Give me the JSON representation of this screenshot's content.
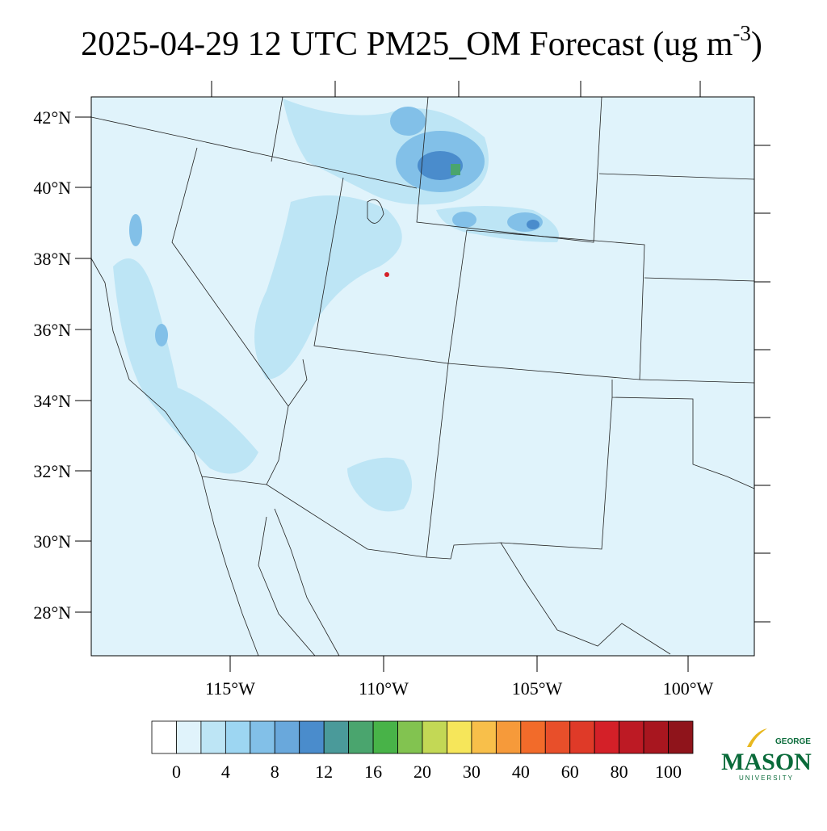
{
  "title": {
    "main": "2025-04-29 12 UTC PM25_OM Forecast (ug m",
    "superscript": "-3",
    "end": ")"
  },
  "map": {
    "lat_labels": [
      "42°N",
      "40°N",
      "38°N",
      "36°N",
      "34°N",
      "32°N",
      "30°N",
      "28°N"
    ],
    "lon_labels": [
      "115°W",
      "110°W",
      "105°W",
      "100°W"
    ]
  },
  "colorbar": {
    "colors": [
      "#ffffff",
      "#e0f3fb",
      "#bde5f5",
      "#9dd6f2",
      "#82c0e8",
      "#69a8dc",
      "#4a8ccc",
      "#4a9a9a",
      "#4aa56e",
      "#48b348",
      "#82c350",
      "#c3d855",
      "#f6e65a",
      "#f8bf4a",
      "#f69a3a",
      "#f26b2a",
      "#e84f2a",
      "#df3a28",
      "#d42028",
      "#bd1a24",
      "#a8161f",
      "#8f141b"
    ],
    "labels": [
      0,
      4,
      8,
      12,
      16,
      20,
      30,
      40,
      60,
      80,
      100
    ]
  },
  "logo": {
    "top": "GEORGE",
    "main": "MASON",
    "bottom": "UNIVERSITY"
  }
}
